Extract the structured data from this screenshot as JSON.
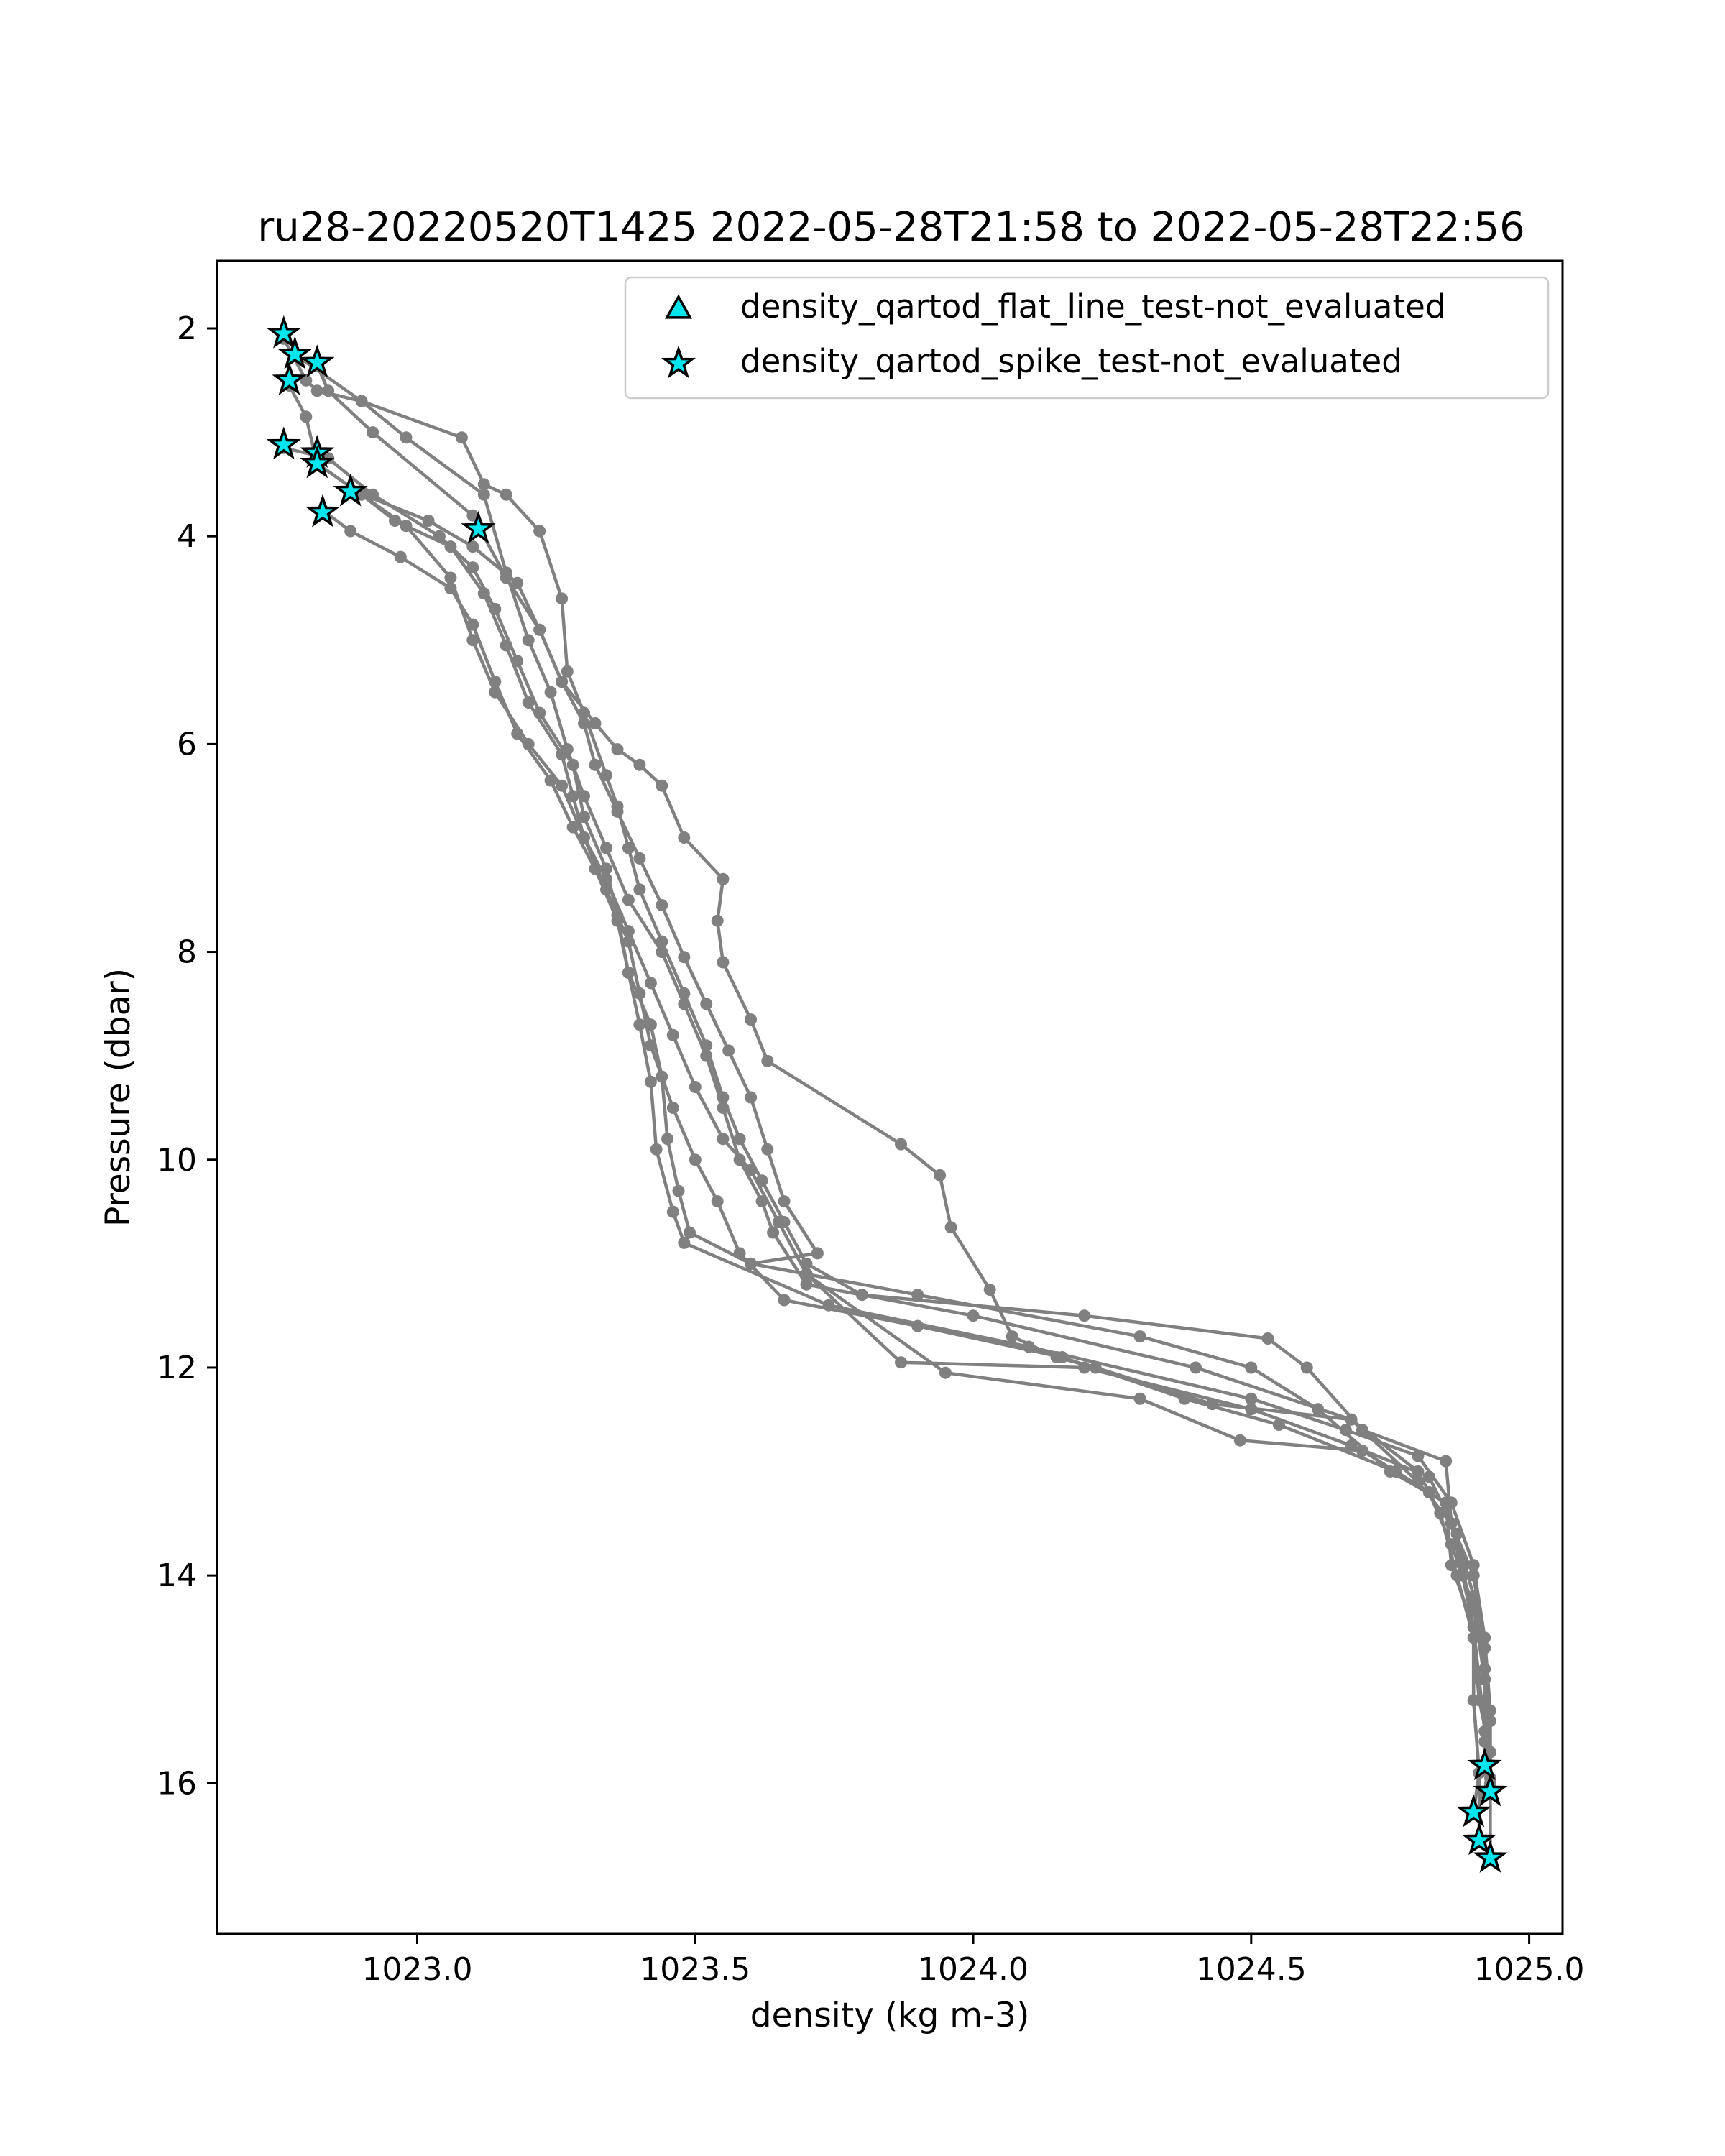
{
  "chart_data": {
    "type": "scatter",
    "title": "ru28-20220520T1425 2022-05-28T21:58 to 2022-05-28T22:56",
    "xlabel": "density (kg m-3)",
    "ylabel": "Pressure (dbar)",
    "xlim": [
      1022.64,
      1025.06
    ],
    "ylim": [
      17.45,
      1.35
    ],
    "y_inverted": true,
    "xticks": [
      1023.0,
      1023.5,
      1024.0,
      1024.5,
      1025.0
    ],
    "xtick_labels": [
      "1023.0",
      "1023.5",
      "1024.0",
      "1024.5",
      "1025.0"
    ],
    "yticks": [
      2,
      4,
      6,
      8,
      10,
      12,
      14,
      16
    ],
    "ytick_labels": [
      "2",
      "4",
      "6",
      "8",
      "10",
      "12",
      "14",
      "16"
    ],
    "grid": false,
    "legend_position": "top-right",
    "colors": {
      "profile": "#808080",
      "marker_fill": "#00e5ee",
      "marker_edge": "#000000"
    },
    "legend": [
      {
        "label": "density_qartod_flat_line_test-not_evaluated",
        "marker": "triangle"
      },
      {
        "label": "density_qartod_spike_test-not_evaluated",
        "marker": "star"
      }
    ],
    "series": [
      {
        "points": [
          [
            1022.76,
            2.1
          ],
          [
            1022.8,
            2.5
          ],
          [
            1022.82,
            2.6
          ],
          [
            1022.9,
            2.7
          ],
          [
            1023.08,
            3.05
          ],
          [
            1023.12,
            3.5
          ],
          [
            1023.16,
            3.6
          ],
          [
            1023.22,
            3.95
          ],
          [
            1023.26,
            4.6
          ],
          [
            1023.27,
            5.3
          ],
          [
            1023.3,
            5.7
          ],
          [
            1023.34,
            6.3
          ],
          [
            1023.36,
            6.6
          ],
          [
            1023.38,
            7.0
          ],
          [
            1023.4,
            7.4
          ],
          [
            1023.44,
            7.9
          ],
          [
            1023.48,
            8.4
          ],
          [
            1023.52,
            8.9
          ],
          [
            1023.55,
            9.4
          ],
          [
            1023.58,
            9.8
          ],
          [
            1023.62,
            10.2
          ],
          [
            1023.66,
            10.6
          ],
          [
            1023.7,
            11.0
          ],
          [
            1023.8,
            11.3
          ],
          [
            1024.2,
            11.5
          ],
          [
            1024.53,
            11.72
          ],
          [
            1024.6,
            12.0
          ],
          [
            1024.7,
            12.6
          ],
          [
            1024.85,
            12.9
          ],
          [
            1024.86,
            13.5
          ],
          [
            1024.88,
            14.0
          ],
          [
            1024.9,
            14.5
          ],
          [
            1024.91,
            15.0
          ],
          [
            1024.92,
            15.5
          ],
          [
            1024.92,
            15.83
          ]
        ]
      },
      {
        "points": [
          [
            1022.78,
            2.25
          ],
          [
            1022.9,
            2.7
          ],
          [
            1022.98,
            3.05
          ],
          [
            1023.12,
            3.6
          ],
          [
            1023.16,
            4.35
          ],
          [
            1023.2,
            5.0
          ],
          [
            1023.24,
            5.5
          ],
          [
            1023.27,
            6.05
          ],
          [
            1023.3,
            6.5
          ],
          [
            1023.34,
            7.0
          ],
          [
            1023.38,
            7.5
          ],
          [
            1023.44,
            8.0
          ],
          [
            1023.48,
            8.5
          ],
          [
            1023.52,
            9.0
          ],
          [
            1023.55,
            9.5
          ],
          [
            1023.58,
            10.0
          ],
          [
            1023.62,
            10.4
          ],
          [
            1023.64,
            10.7
          ],
          [
            1023.7,
            11.2
          ],
          [
            1024.0,
            11.5
          ],
          [
            1024.4,
            12.0
          ],
          [
            1024.68,
            12.5
          ],
          [
            1024.8,
            13.0
          ],
          [
            1024.84,
            13.4
          ],
          [
            1024.87,
            14.0
          ],
          [
            1024.9,
            14.6
          ],
          [
            1024.91,
            15.2
          ],
          [
            1024.93,
            15.7
          ],
          [
            1024.93,
            16.1
          ]
        ]
      },
      {
        "points": [
          [
            1022.82,
            2.35
          ],
          [
            1022.84,
            2.6
          ],
          [
            1022.92,
            3.0
          ],
          [
            1023.1,
            3.8
          ],
          [
            1023.16,
            4.4
          ],
          [
            1023.22,
            4.9
          ],
          [
            1023.26,
            5.4
          ],
          [
            1023.3,
            5.8
          ],
          [
            1023.32,
            6.2
          ],
          [
            1023.36,
            6.65
          ],
          [
            1023.4,
            7.1
          ],
          [
            1023.44,
            7.55
          ],
          [
            1023.48,
            8.05
          ],
          [
            1023.52,
            8.5
          ],
          [
            1023.56,
            8.95
          ],
          [
            1023.6,
            9.4
          ],
          [
            1023.63,
            9.9
          ],
          [
            1023.66,
            10.4
          ],
          [
            1023.72,
            10.9
          ],
          [
            1023.6,
            11.0
          ],
          [
            1023.9,
            11.3
          ],
          [
            1024.3,
            11.7
          ],
          [
            1024.5,
            12.0
          ],
          [
            1024.62,
            12.4
          ],
          [
            1024.75,
            13.0
          ],
          [
            1024.85,
            13.3
          ],
          [
            1024.88,
            13.9
          ],
          [
            1024.9,
            14.5
          ],
          [
            1024.9,
            15.2
          ],
          [
            1024.91,
            15.9
          ],
          [
            1024.9,
            16.28
          ]
        ]
      },
      {
        "points": [
          [
            1022.77,
            2.55
          ],
          [
            1022.8,
            2.85
          ],
          [
            1022.82,
            3.3
          ],
          [
            1022.98,
            3.9
          ],
          [
            1023.06,
            4.4
          ],
          [
            1023.1,
            5.0
          ],
          [
            1023.14,
            5.5
          ],
          [
            1023.2,
            6.0
          ],
          [
            1023.26,
            6.4
          ],
          [
            1023.3,
            6.9
          ],
          [
            1023.34,
            7.4
          ],
          [
            1023.38,
            7.9
          ],
          [
            1023.4,
            8.4
          ],
          [
            1023.42,
            8.9
          ],
          [
            1023.46,
            9.5
          ],
          [
            1023.5,
            10.0
          ],
          [
            1023.54,
            10.4
          ],
          [
            1023.58,
            10.9
          ],
          [
            1023.66,
            11.35
          ],
          [
            1023.9,
            11.6
          ],
          [
            1024.16,
            11.9
          ],
          [
            1024.38,
            12.3
          ],
          [
            1024.55,
            12.55
          ],
          [
            1024.76,
            13.0
          ],
          [
            1024.85,
            13.3
          ],
          [
            1024.86,
            13.9
          ],
          [
            1024.9,
            14.5
          ],
          [
            1024.9,
            15.2
          ],
          [
            1024.91,
            15.9
          ],
          [
            1024.91,
            16.55
          ]
        ]
      },
      {
        "points": [
          [
            1022.76,
            3.15
          ],
          [
            1022.84,
            3.25
          ],
          [
            1022.92,
            3.6
          ],
          [
            1023.04,
            4.0
          ],
          [
            1023.1,
            4.3
          ],
          [
            1023.14,
            4.7
          ],
          [
            1023.18,
            5.2
          ],
          [
            1023.22,
            5.7
          ],
          [
            1023.28,
            6.2
          ],
          [
            1023.3,
            6.7
          ],
          [
            1023.34,
            7.2
          ],
          [
            1023.36,
            7.65
          ],
          [
            1023.38,
            8.2
          ],
          [
            1023.4,
            8.7
          ],
          [
            1023.42,
            9.25
          ],
          [
            1023.43,
            9.9
          ],
          [
            1023.46,
            10.5
          ],
          [
            1023.48,
            10.8
          ],
          [
            1023.74,
            11.4
          ],
          [
            1024.1,
            11.8
          ],
          [
            1024.5,
            12.3
          ],
          [
            1024.67,
            12.6
          ],
          [
            1024.8,
            12.85
          ],
          [
            1024.86,
            13.3
          ],
          [
            1024.9,
            13.9
          ],
          [
            1024.92,
            14.6
          ],
          [
            1024.93,
            15.3
          ],
          [
            1024.93,
            16.0
          ],
          [
            1024.93,
            16.72
          ]
        ]
      },
      {
        "points": [
          [
            1022.82,
            3.3
          ],
          [
            1022.9,
            3.6
          ],
          [
            1022.96,
            3.85
          ],
          [
            1023.06,
            4.1
          ],
          [
            1023.12,
            4.55
          ],
          [
            1023.16,
            5.05
          ],
          [
            1023.2,
            5.6
          ],
          [
            1023.26,
            6.1
          ],
          [
            1023.28,
            6.5
          ],
          [
            1023.3,
            6.9
          ],
          [
            1023.34,
            7.3
          ],
          [
            1023.38,
            7.8
          ],
          [
            1023.42,
            8.3
          ],
          [
            1023.46,
            8.8
          ],
          [
            1023.5,
            9.3
          ],
          [
            1023.55,
            9.8
          ],
          [
            1023.6,
            10.1
          ],
          [
            1023.65,
            10.6
          ],
          [
            1023.7,
            11.1
          ],
          [
            1023.87,
            11.95
          ],
          [
            1024.2,
            12.0
          ],
          [
            1024.5,
            12.4
          ],
          [
            1024.68,
            12.75
          ],
          [
            1024.82,
            13.05
          ],
          [
            1024.87,
            13.6
          ],
          [
            1024.9,
            14.2
          ],
          [
            1024.92,
            14.9
          ],
          [
            1024.92,
            15.6
          ],
          [
            1024.92,
            15.86
          ]
        ]
      },
      {
        "points": [
          [
            1022.83,
            3.75
          ],
          [
            1022.88,
            3.95
          ],
          [
            1022.97,
            4.2
          ],
          [
            1023.06,
            4.5
          ],
          [
            1023.1,
            4.85
          ],
          [
            1023.14,
            5.4
          ],
          [
            1023.18,
            5.9
          ],
          [
            1023.24,
            6.35
          ],
          [
            1023.28,
            6.8
          ],
          [
            1023.32,
            7.2
          ],
          [
            1023.36,
            7.7
          ],
          [
            1023.38,
            8.2
          ],
          [
            1023.42,
            8.7
          ],
          [
            1023.44,
            9.2
          ],
          [
            1023.45,
            9.8
          ],
          [
            1023.47,
            10.3
          ],
          [
            1023.49,
            10.7
          ],
          [
            1023.6,
            11.0
          ],
          [
            1023.7,
            11.1
          ],
          [
            1023.95,
            12.05
          ],
          [
            1024.3,
            12.3
          ],
          [
            1024.48,
            12.7
          ],
          [
            1024.7,
            12.8
          ],
          [
            1024.82,
            13.2
          ],
          [
            1024.86,
            13.7
          ],
          [
            1024.9,
            14.3
          ],
          [
            1024.92,
            15.0
          ],
          [
            1024.93,
            15.7
          ],
          [
            1024.92,
            16.1
          ]
        ]
      },
      {
        "points": [
          [
            1022.88,
            3.55
          ],
          [
            1023.02,
            3.85
          ],
          [
            1023.1,
            4.1
          ],
          [
            1023.18,
            4.45
          ],
          [
            1023.22,
            4.9
          ],
          [
            1023.26,
            5.4
          ],
          [
            1023.32,
            5.8
          ],
          [
            1023.36,
            6.05
          ],
          [
            1023.4,
            6.2
          ],
          [
            1023.44,
            6.4
          ],
          [
            1023.48,
            6.9
          ],
          [
            1023.55,
            7.3
          ],
          [
            1023.54,
            7.7
          ],
          [
            1023.55,
            8.1
          ],
          [
            1023.6,
            8.65
          ],
          [
            1023.63,
            9.05
          ],
          [
            1023.87,
            9.85
          ],
          [
            1023.94,
            10.15
          ],
          [
            1023.96,
            10.65
          ],
          [
            1024.03,
            11.25
          ],
          [
            1024.07,
            11.7
          ],
          [
            1024.15,
            11.9
          ],
          [
            1024.22,
            12.0
          ],
          [
            1024.43,
            12.35
          ],
          [
            1024.68,
            12.5
          ],
          [
            1024.8,
            13.1
          ],
          [
            1024.86,
            13.5
          ],
          [
            1024.9,
            14.0
          ],
          [
            1024.92,
            14.7
          ],
          [
            1024.93,
            15.4
          ],
          [
            1024.93,
            15.95
          ]
        ]
      }
    ],
    "flagged_points": [
      [
        1022.76,
        2.05
      ],
      [
        1022.78,
        2.25
      ],
      [
        1022.82,
        2.33
      ],
      [
        1022.77,
        2.5
      ],
      [
        1022.76,
        3.12
      ],
      [
        1022.82,
        3.2
      ],
      [
        1022.82,
        3.3
      ],
      [
        1022.88,
        3.57
      ],
      [
        1022.83,
        3.77
      ],
      [
        1023.11,
        3.93
      ],
      [
        1024.92,
        15.83
      ],
      [
        1024.93,
        16.08
      ],
      [
        1024.9,
        16.28
      ],
      [
        1024.91,
        16.55
      ],
      [
        1024.93,
        16.72
      ]
    ]
  }
}
